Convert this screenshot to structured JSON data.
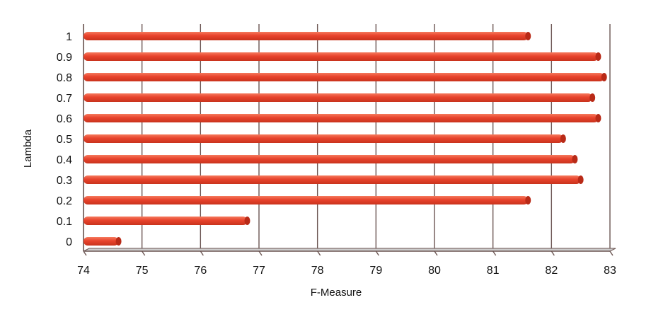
{
  "chart_data": {
    "type": "bar",
    "orientation": "horizontal",
    "style": "3d-cylinder",
    "xlabel": "F-Measure",
    "ylabel": "Lambda",
    "xlim": [
      74,
      83
    ],
    "x_ticks": [
      "74",
      "75",
      "76",
      "77",
      "78",
      "79",
      "80",
      "81",
      "82",
      "83"
    ],
    "categories": [
      "0",
      "0.1",
      "0.2",
      "0.3",
      "0.4",
      "0.5",
      "0.6",
      "0.7",
      "0.8",
      "0.9",
      "1"
    ],
    "values": [
      74.6,
      76.8,
      81.6,
      82.5,
      82.4,
      82.2,
      82.8,
      82.7,
      82.9,
      82.8,
      81.6
    ],
    "grid": "vertical",
    "legend": "none",
    "colors": {
      "bar": "#e8432c",
      "bar_end": "#b92a17",
      "grid": "#6b5552",
      "floor": "#cccccc"
    }
  }
}
